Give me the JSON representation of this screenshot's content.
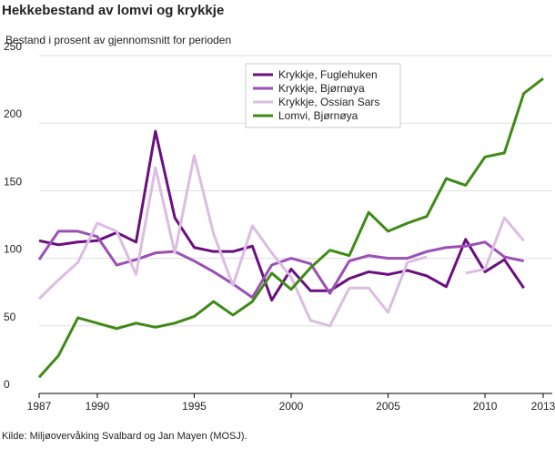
{
  "chart_data": {
    "type": "line",
    "title": "Hekkebestand av lomvi og krykkje",
    "subtitle": "Bestand i prosent av gjennomsnitt for perioden",
    "source": "Kilde: Miljøovervåking Svalbard og Jan Mayen (MOSJ).",
    "x": [
      1987,
      1988,
      1989,
      1990,
      1991,
      1992,
      1993,
      1994,
      1995,
      1996,
      1997,
      1998,
      1999,
      2000,
      2001,
      2002,
      2003,
      2004,
      2005,
      2006,
      2007,
      2008,
      2009,
      2010,
      2011,
      2012,
      2013
    ],
    "xlim": [
      1987,
      2013
    ],
    "xticks": [
      1987,
      1990,
      1995,
      2000,
      2005,
      2010,
      2013
    ],
    "ylim": [
      0,
      250
    ],
    "yticks": [
      0,
      50,
      100,
      150,
      200,
      250
    ],
    "grid": true,
    "legend": "top",
    "series": [
      {
        "name": "Krykkje, Fuglehuken",
        "color": "#6a0f80",
        "values": [
          113,
          110,
          112,
          113,
          119,
          112,
          194,
          130,
          108,
          105,
          105,
          109,
          69,
          92,
          76,
          76,
          85,
          90,
          88,
          91,
          87,
          79,
          114,
          90,
          99,
          78,
          null
        ]
      },
      {
        "name": "Krykkje, Bjørnøya",
        "color": "#9a50b4",
        "values": [
          99,
          120,
          120,
          116,
          95,
          99,
          104,
          105,
          98,
          90,
          81,
          71,
          95,
          100,
          96,
          74,
          98,
          102,
          100,
          100,
          105,
          108,
          109,
          112,
          101,
          98,
          null
        ]
      },
      {
        "name": "Krykkje, Ossian Sars",
        "color": "#dbbde2",
        "values": [
          70,
          84,
          97,
          126,
          120,
          88,
          167,
          104,
          176,
          118,
          80,
          124,
          104,
          86,
          54,
          50,
          78,
          78,
          60,
          97,
          101,
          null,
          89,
          92,
          130,
          113,
          null
        ]
      },
      {
        "name": "Lomvi, Bjørnøya",
        "color": "#3f8a17",
        "values": [
          12,
          28,
          56,
          52,
          48,
          52,
          49,
          52,
          57,
          68,
          58,
          68,
          89,
          77,
          93,
          106,
          102,
          134,
          120,
          126,
          131,
          159,
          154,
          175,
          178,
          222,
          233
        ]
      }
    ]
  }
}
